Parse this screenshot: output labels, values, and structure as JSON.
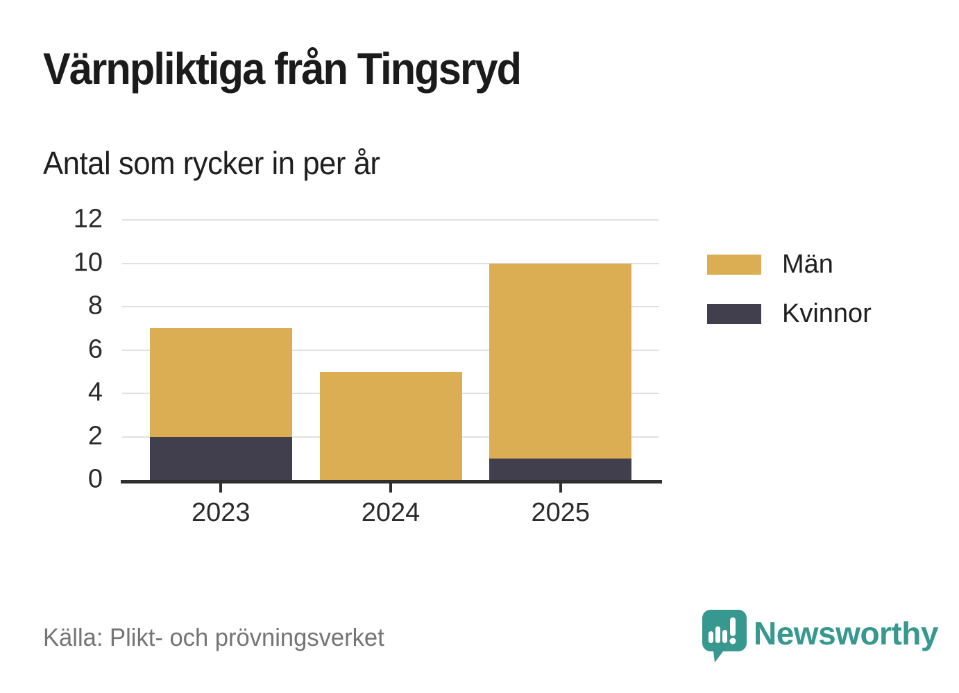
{
  "header": {
    "title": "Värnpliktiga från Tingsryd",
    "subtitle": "Antal som rycker in per år"
  },
  "chart_data": {
    "type": "bar",
    "stacked": true,
    "title": "Värnpliktiga från Tingsryd",
    "subtitle": "Antal som rycker in per år",
    "categories": [
      "2023",
      "2024",
      "2025"
    ],
    "series": [
      {
        "name": "Män",
        "color": "#DBAE54",
        "values": [
          5,
          5,
          9
        ]
      },
      {
        "name": "Kvinnor",
        "color": "#413F4D",
        "values": [
          2,
          0,
          1
        ]
      }
    ],
    "stack_order_bottom_to_top": [
      "Kvinnor",
      "Män"
    ],
    "totals": [
      7,
      5,
      10
    ],
    "ylim": [
      0,
      12
    ],
    "yticks": [
      0,
      2,
      4,
      6,
      8,
      10,
      12
    ],
    "grid": true,
    "legend_position": "right",
    "source": "Källa: Plikt- och prövningsverket"
  },
  "legend": {
    "items": [
      {
        "label": "Män",
        "color": "#DBAE54"
      },
      {
        "label": "Kvinnor",
        "color": "#413F4D"
      }
    ]
  },
  "footer": {
    "source": "Källa: Plikt- och prövningsverket",
    "brand_name": "Newsworthy"
  },
  "colors": {
    "men": "#DBAE54",
    "women": "#413F4D",
    "axis": "#2F2F2F",
    "grid": "#E1E1E1",
    "tick_text": "#2B2B2B",
    "source_text": "#757575",
    "brand_teal": "#36988E",
    "background": "#FFFFFF"
  }
}
